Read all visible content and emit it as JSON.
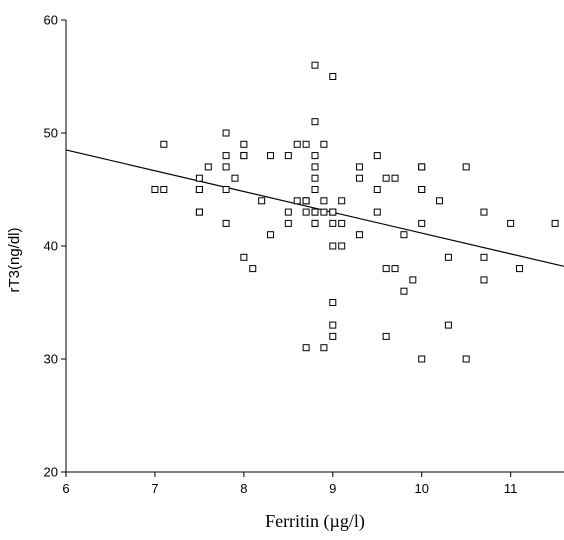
{
  "chart_data": {
    "type": "scatter",
    "xlabel": "Ferritin (µg/l)",
    "ylabel": "rT3(ng/dl)",
    "xlim": [
      6,
      11.6
    ],
    "ylim": [
      20,
      60
    ],
    "x_ticks": [
      "6",
      "7",
      "8",
      "9",
      "10",
      "11"
    ],
    "y_ticks": [
      "20",
      "30",
      "40",
      "50",
      "60"
    ],
    "grid": false,
    "marker": "open-square",
    "trendline": {
      "x": [
        6,
        11.6
      ],
      "y": [
        48.5,
        38.2
      ]
    },
    "points": [
      [
        7.0,
        45
      ],
      [
        7.1,
        45
      ],
      [
        7.1,
        49
      ],
      [
        7.5,
        46
      ],
      [
        7.5,
        45
      ],
      [
        7.5,
        45
      ],
      [
        7.5,
        43
      ],
      [
        7.5,
        43
      ],
      [
        7.6,
        47
      ],
      [
        7.8,
        50
      ],
      [
        7.8,
        48
      ],
      [
        7.8,
        47
      ],
      [
        7.8,
        45
      ],
      [
        7.8,
        42
      ],
      [
        7.9,
        46
      ],
      [
        8.0,
        49
      ],
      [
        8.0,
        48
      ],
      [
        8.0,
        48
      ],
      [
        8.0,
        39
      ],
      [
        8.1,
        38
      ],
      [
        8.2,
        44
      ],
      [
        8.3,
        48
      ],
      [
        8.3,
        41
      ],
      [
        8.5,
        48
      ],
      [
        8.5,
        43
      ],
      [
        8.5,
        42
      ],
      [
        8.6,
        49
      ],
      [
        8.6,
        44
      ],
      [
        8.7,
        49
      ],
      [
        8.7,
        44
      ],
      [
        8.7,
        44
      ],
      [
        8.7,
        43
      ],
      [
        8.7,
        31
      ],
      [
        8.8,
        56
      ],
      [
        8.8,
        51
      ],
      [
        8.8,
        48
      ],
      [
        8.8,
        47
      ],
      [
        8.8,
        46
      ],
      [
        8.8,
        45
      ],
      [
        8.8,
        43
      ],
      [
        8.8,
        43
      ],
      [
        8.8,
        42
      ],
      [
        8.8,
        42
      ],
      [
        8.9,
        49
      ],
      [
        8.9,
        44
      ],
      [
        8.9,
        43
      ],
      [
        8.9,
        31
      ],
      [
        9.0,
        55
      ],
      [
        9.0,
        43
      ],
      [
        9.0,
        43
      ],
      [
        9.0,
        42
      ],
      [
        9.0,
        40
      ],
      [
        9.0,
        35
      ],
      [
        9.0,
        33
      ],
      [
        9.0,
        32
      ],
      [
        9.1,
        44
      ],
      [
        9.1,
        42
      ],
      [
        9.1,
        40
      ],
      [
        9.3,
        47
      ],
      [
        9.3,
        46
      ],
      [
        9.3,
        41
      ],
      [
        9.5,
        48
      ],
      [
        9.5,
        45
      ],
      [
        9.5,
        43
      ],
      [
        9.6,
        46
      ],
      [
        9.6,
        38
      ],
      [
        9.6,
        32
      ],
      [
        9.7,
        46
      ],
      [
        9.7,
        38
      ],
      [
        9.8,
        41
      ],
      [
        9.8,
        36
      ],
      [
        9.9,
        37
      ],
      [
        10.0,
        47
      ],
      [
        10.0,
        47
      ],
      [
        10.0,
        45
      ],
      [
        10.0,
        45
      ],
      [
        10.0,
        42
      ],
      [
        10.0,
        30
      ],
      [
        10.2,
        44
      ],
      [
        10.3,
        39
      ],
      [
        10.3,
        33
      ],
      [
        10.5,
        47
      ],
      [
        10.5,
        30
      ],
      [
        10.7,
        43
      ],
      [
        10.7,
        39
      ],
      [
        10.7,
        37
      ],
      [
        11.0,
        42
      ],
      [
        11.1,
        38
      ],
      [
        11.5,
        42
      ]
    ]
  }
}
